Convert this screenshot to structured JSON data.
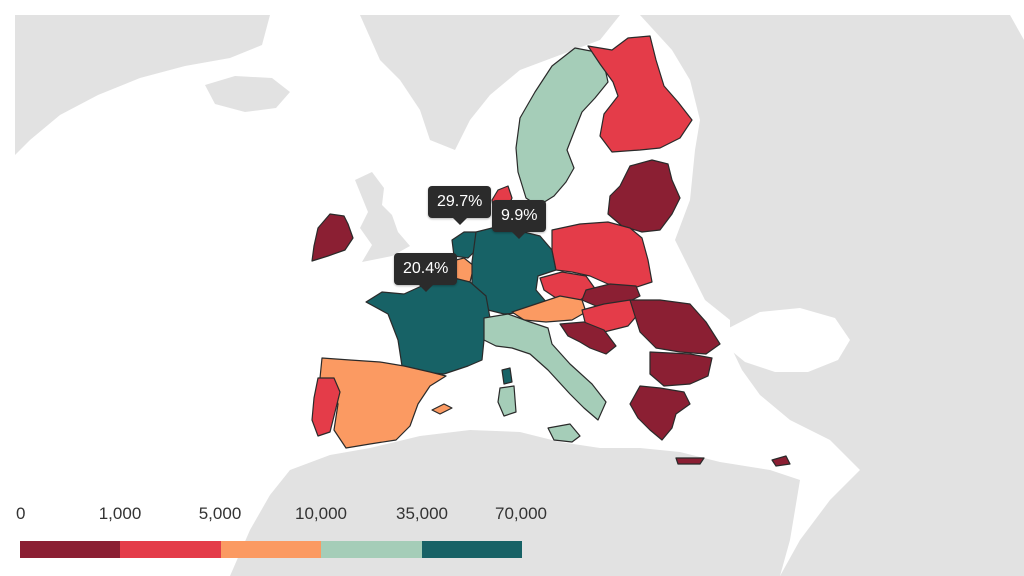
{
  "legend": {
    "ticks": [
      "0",
      "1,000",
      "5,000",
      "10,000",
      "35,000",
      "70,000"
    ],
    "colors": [
      "#8b1f33",
      "#e43c49",
      "#fb9a62",
      "#a5cdb8",
      "#176266"
    ]
  },
  "tooltips": [
    {
      "name": "netherlands",
      "label": "29.7%"
    },
    {
      "name": "germany",
      "label": "9.9%"
    },
    {
      "name": "france",
      "label": "20.4%"
    }
  ],
  "colors": {
    "land": "#e2e2e2",
    "sea": "#ffffff",
    "border": "#2a2a2a",
    "tooltip_bg": "#2b2b2b"
  }
}
